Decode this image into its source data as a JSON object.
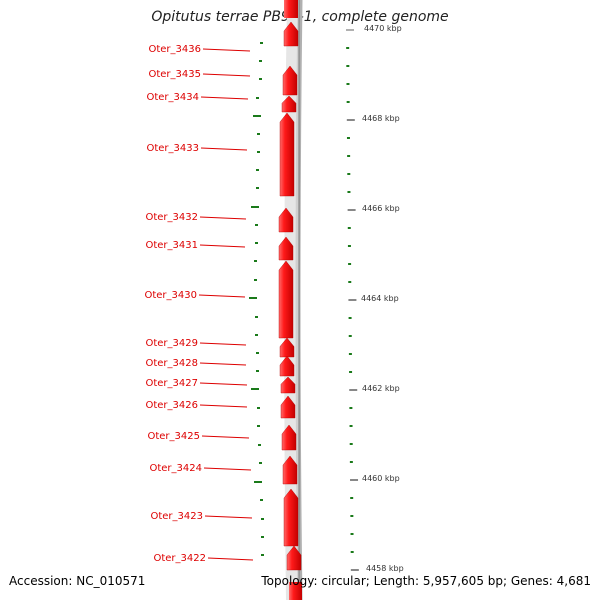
{
  "title": "Opitutus terrae PB90-1, complete genome",
  "footer": {
    "accession": "Accession: NC_010571",
    "summary": "Topology: circular; Length: 5,957,605 bp; Genes: 4,681"
  },
  "colors": {
    "gene": "#e60000",
    "gene_label": "#dd0000",
    "tick": "#1a7a1a",
    "backbone": "#888888"
  },
  "genes": [
    {
      "name": "Oter_3436"
    },
    {
      "name": "Oter_3435"
    },
    {
      "name": "Oter_3434"
    },
    {
      "name": "Oter_3433"
    },
    {
      "name": "Oter_3432"
    },
    {
      "name": "Oter_3431"
    },
    {
      "name": "Oter_3430"
    },
    {
      "name": "Oter_3429"
    },
    {
      "name": "Oter_3428"
    },
    {
      "name": "Oter_3427"
    },
    {
      "name": "Oter_3426"
    },
    {
      "name": "Oter_3425"
    },
    {
      "name": "Oter_3424"
    },
    {
      "name": "Oter_3423"
    },
    {
      "name": "Oter_3422"
    }
  ],
  "scale_ticks": [
    {
      "label": "4470 kbp"
    },
    {
      "label": "4468 kbp"
    },
    {
      "label": "4466 kbp"
    },
    {
      "label": "4464 kbp"
    },
    {
      "label": "4462 kbp"
    },
    {
      "label": "4460 kbp"
    },
    {
      "label": "4458 kbp"
    }
  ]
}
